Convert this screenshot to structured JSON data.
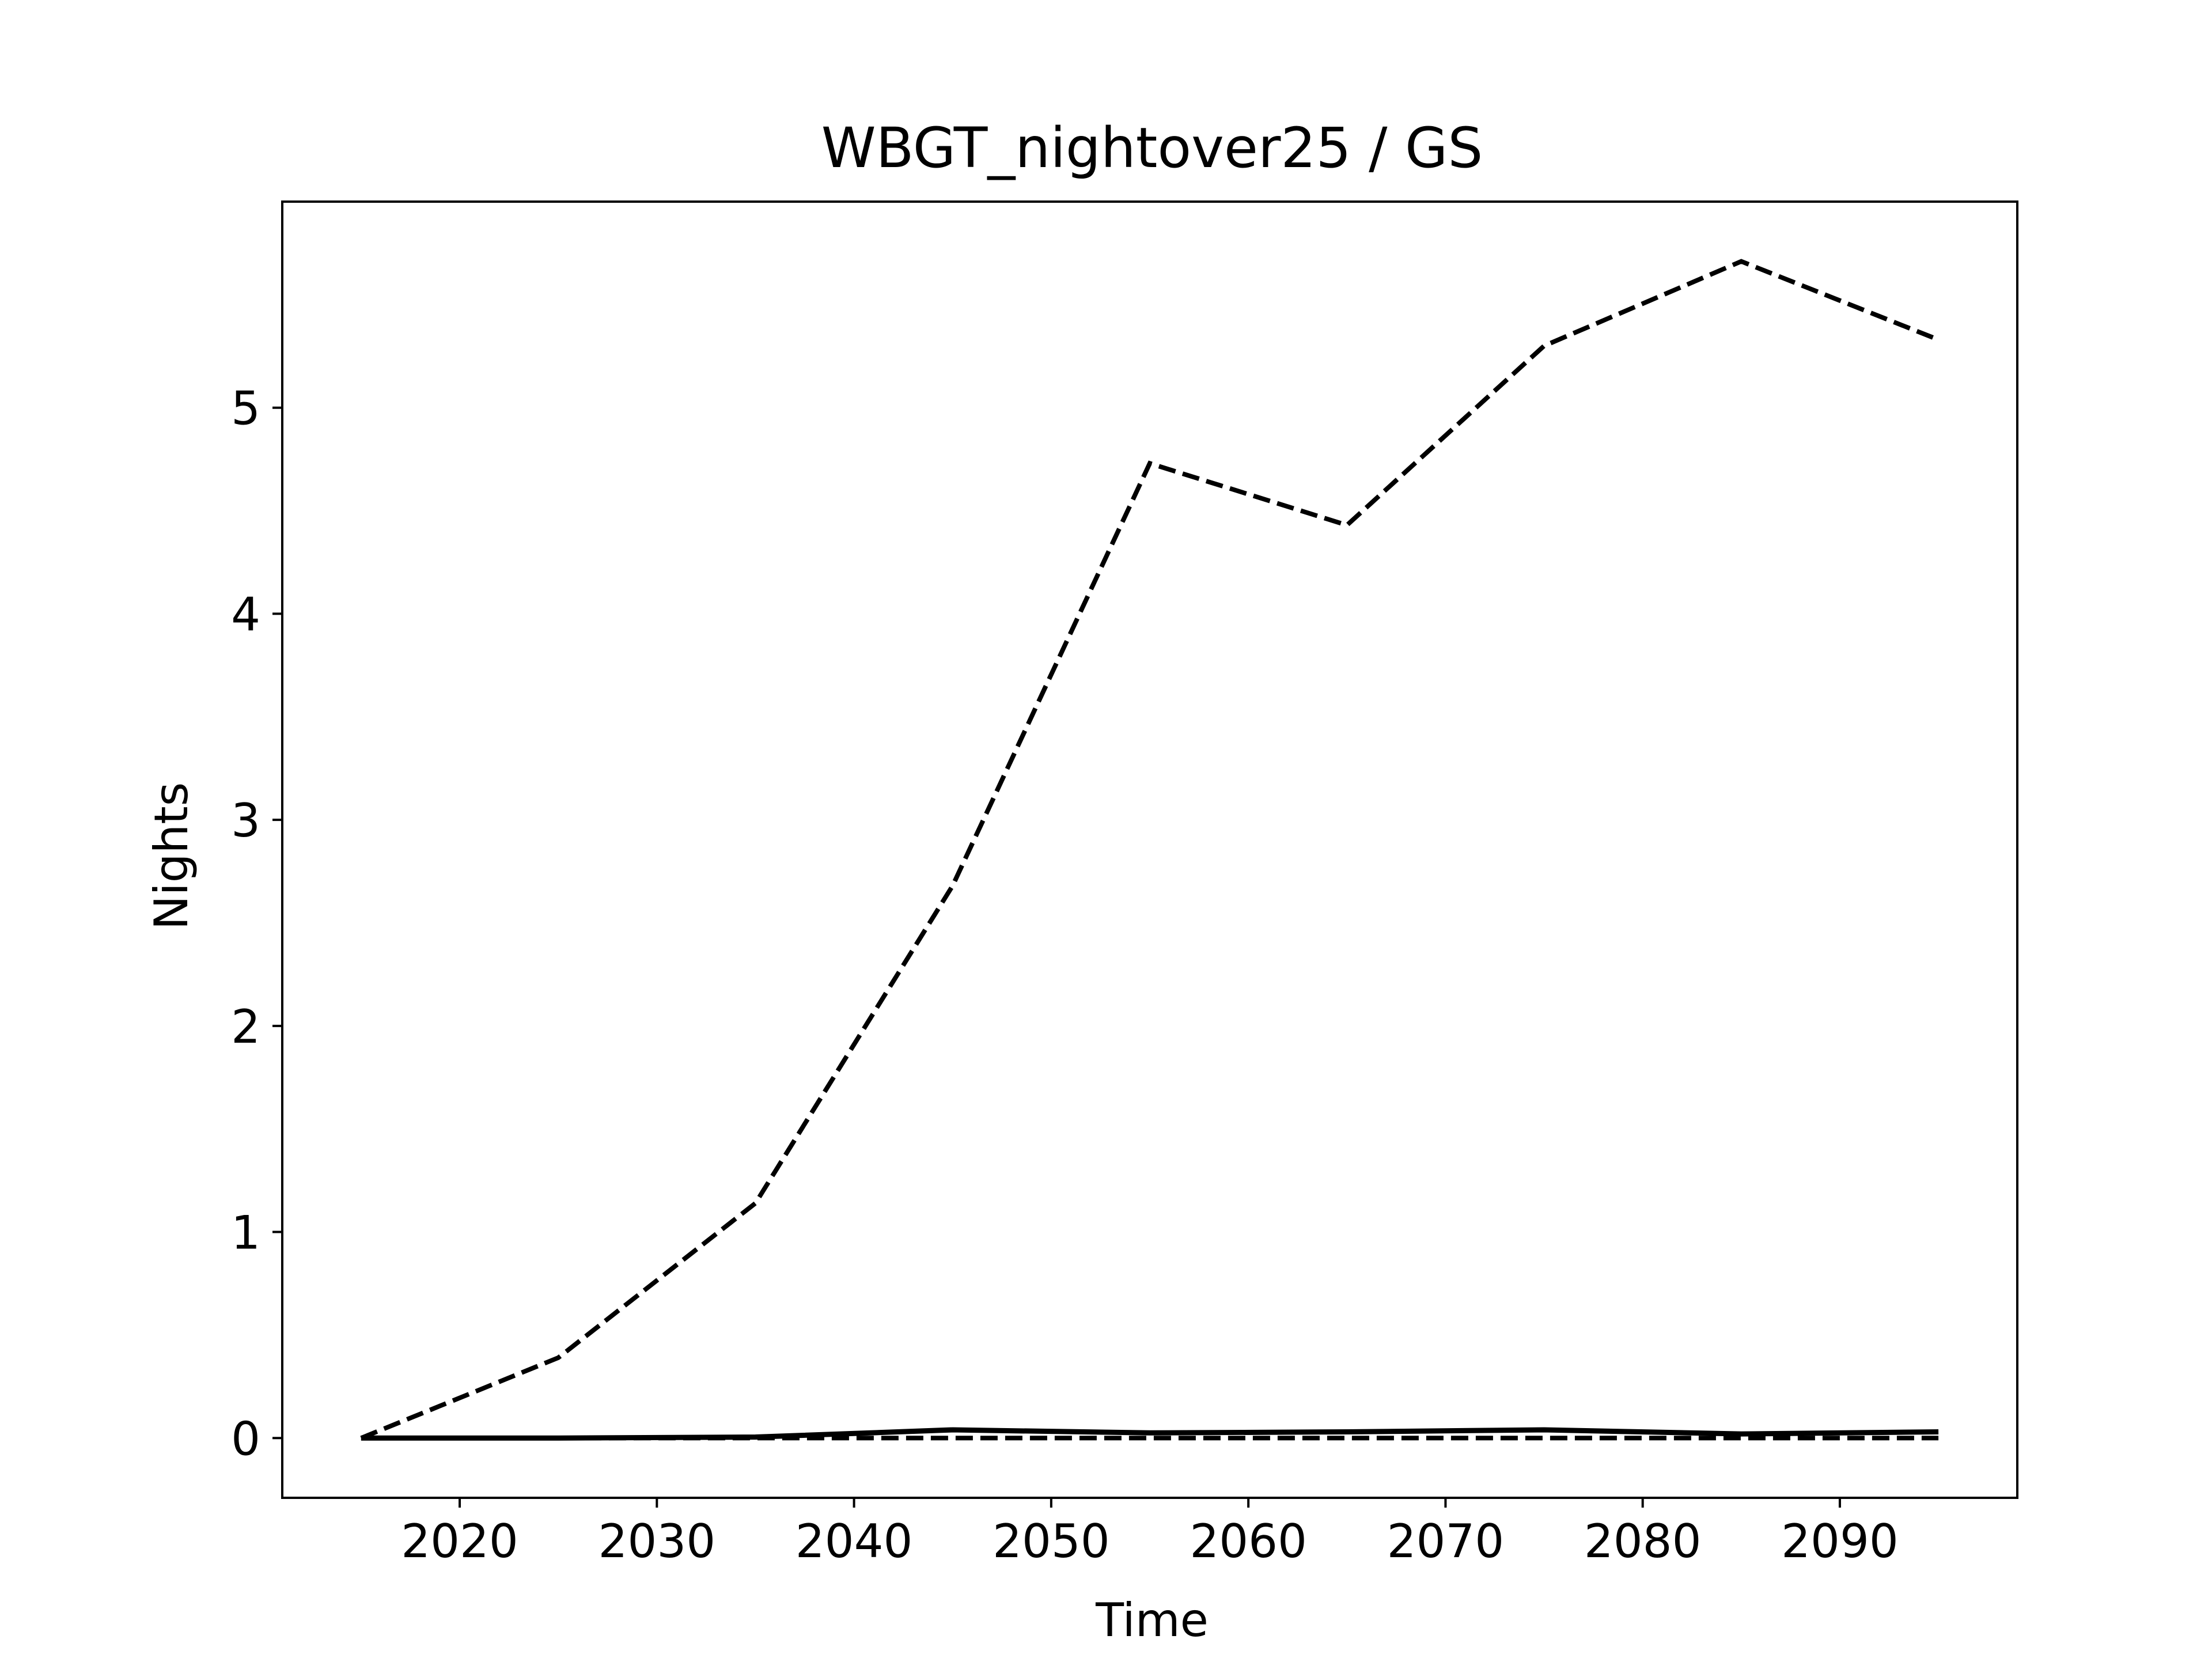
{
  "chart_data": {
    "type": "line",
    "title": "WBGT_nightover25 / GS",
    "xlabel": "Time",
    "ylabel": "Nights",
    "xlim": [
      2011,
      2099
    ],
    "ylim": [
      -0.29,
      6.0
    ],
    "xticks": [
      2020,
      2030,
      2040,
      2050,
      2060,
      2070,
      2080,
      2090
    ],
    "yticks": [
      0,
      1,
      2,
      3,
      4,
      5
    ],
    "grid": false,
    "legend": "none",
    "x": [
      2015,
      2025,
      2035,
      2045,
      2055,
      2065,
      2075,
      2085,
      2095
    ],
    "series": [
      {
        "style": "dashed",
        "color": "#000000",
        "values": [
          0.0,
          0.39,
          1.14,
          2.68,
          4.73,
          4.43,
          5.3,
          5.71,
          5.33
        ]
      },
      {
        "style": "solid",
        "color": "#000000",
        "values": [
          0.0,
          0.0,
          0.005,
          0.04,
          0.025,
          0.03,
          0.04,
          0.02,
          0.03
        ]
      },
      {
        "style": "dashed",
        "color": "#000000",
        "values": [
          0.0,
          0.0,
          0.0,
          0.0,
          0.0,
          0.0,
          0.0,
          0.0,
          0.0
        ]
      }
    ]
  }
}
